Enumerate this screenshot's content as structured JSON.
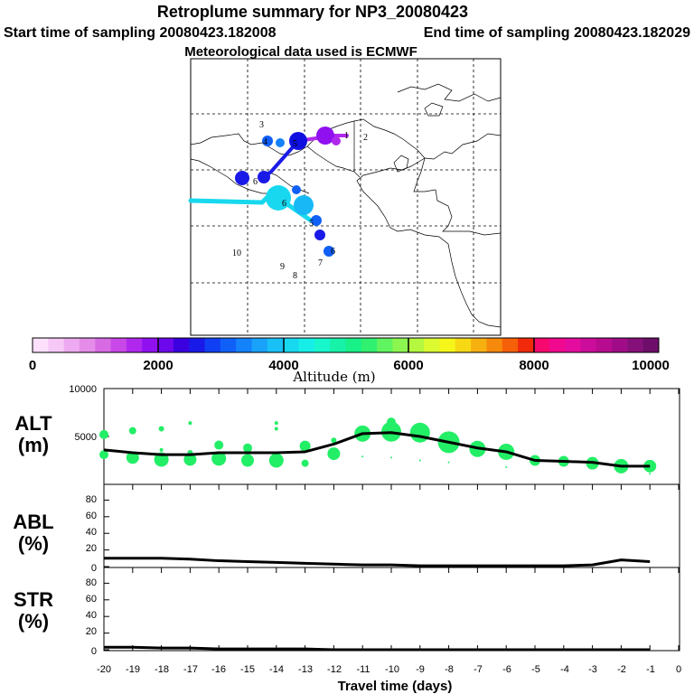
{
  "header": {
    "title": "Retroplume summary for NP3_20080423",
    "start_label": "Start time of sampling 20080423.182008",
    "end_label": "End time of sampling 20080423.182029",
    "met_label": "Meteorological data used is ECMWF"
  },
  "colors": {
    "alt_points": "#22ee66",
    "mean_line": "#000000",
    "colorbar": [
      "#fce0fc",
      "#f6c8f6",
      "#eeaaf0",
      "#e48ce8",
      "#d86ae4",
      "#c848e8",
      "#b028ee",
      "#9010f0",
      "#6e08ec",
      "#3a00e0",
      "#1a1ae8",
      "#1040f4",
      "#1060f8",
      "#1482fa",
      "#18a2fa",
      "#18c0f6",
      "#18d8f0",
      "#18eee8",
      "#18f6cc",
      "#18f2a8",
      "#18f088",
      "#30f070",
      "#60f460",
      "#8cf650",
      "#b4f840",
      "#dcfa30",
      "#f6f61a",
      "#f6d814",
      "#f6b010",
      "#f68a0c",
      "#f66008",
      "#f02a0a",
      "#f6086e",
      "#f0088e",
      "#e40c9e",
      "#cc0c9a",
      "#b80c90",
      "#a00c88",
      "#86107a",
      "#6e0e6a"
    ]
  },
  "chart_data": [
    {
      "type": "map",
      "title": "Retroplume summary for NP3_20080423",
      "plume_labels": [
        "1",
        "2",
        "3",
        "4",
        "5",
        "6",
        "7",
        "8",
        "9",
        "10"
      ],
      "colorbar": {
        "label": "Altitude (m)",
        "min": 0,
        "max": 10000,
        "tick_labels": [
          "0",
          "2000",
          "4000",
          "6000",
          "8000",
          "10000"
        ]
      }
    },
    {
      "type": "scatter",
      "panel": "ALT",
      "ylabel": "ALT",
      "yunit": "(m)",
      "ylim": [
        0,
        10000
      ],
      "ytick_labels": [
        "5000",
        "10000"
      ],
      "mean_line": {
        "x": [
          -20,
          -19,
          -18,
          -17,
          -16,
          -15,
          -14,
          -13,
          -12,
          -11,
          -10,
          -9,
          -8,
          -7,
          -6,
          -5,
          -4,
          -3,
          -2,
          -1
        ],
        "y": [
          3600,
          3300,
          3100,
          3100,
          3300,
          3300,
          3300,
          3400,
          4200,
          5300,
          5400,
          5000,
          4400,
          3800,
          3400,
          2500,
          2400,
          2300,
          1900,
          1900
        ]
      },
      "points": [
        {
          "x": -20,
          "y": 5200,
          "s": 5
        },
        {
          "x": -20,
          "y": 3100,
          "s": 5
        },
        {
          "x": -19,
          "y": 5600,
          "s": 4
        },
        {
          "x": -19,
          "y": 2800,
          "s": 7
        },
        {
          "x": -18,
          "y": 5800,
          "s": 3
        },
        {
          "x": -18,
          "y": 2600,
          "s": 8
        },
        {
          "x": -18,
          "y": 3600,
          "s": 2
        },
        {
          "x": -17,
          "y": 6400,
          "s": 2
        },
        {
          "x": -17,
          "y": 2600,
          "s": 7
        },
        {
          "x": -17,
          "y": 3300,
          "s": 3
        },
        {
          "x": -16,
          "y": 2700,
          "s": 8
        },
        {
          "x": -16,
          "y": 4100,
          "s": 5
        },
        {
          "x": -15,
          "y": 2500,
          "s": 7
        },
        {
          "x": -15,
          "y": 3800,
          "s": 5
        },
        {
          "x": -14,
          "y": 6400,
          "s": 2
        },
        {
          "x": -14,
          "y": 5800,
          "s": 2
        },
        {
          "x": -14,
          "y": 2500,
          "s": 8
        },
        {
          "x": -13,
          "y": 2200,
          "s": 4
        },
        {
          "x": -13,
          "y": 4000,
          "s": 6
        },
        {
          "x": -12,
          "y": 3200,
          "s": 7
        },
        {
          "x": -12,
          "y": 4600,
          "s": 3
        },
        {
          "x": -11,
          "y": 5300,
          "s": 9
        },
        {
          "x": -11,
          "y": 2900,
          "s": 1
        },
        {
          "x": -10,
          "y": 5500,
          "s": 11
        },
        {
          "x": -10,
          "y": 6500,
          "s": 5
        },
        {
          "x": -10,
          "y": 2800,
          "s": 1
        },
        {
          "x": -9,
          "y": 5400,
          "s": 11
        },
        {
          "x": -9,
          "y": 2500,
          "s": 1
        },
        {
          "x": -8,
          "y": 4400,
          "s": 12
        },
        {
          "x": -8,
          "y": 2300,
          "s": 1
        },
        {
          "x": -7,
          "y": 3700,
          "s": 9
        },
        {
          "x": -6,
          "y": 3400,
          "s": 9
        },
        {
          "x": -6,
          "y": 1800,
          "s": 1
        },
        {
          "x": -5,
          "y": 2500,
          "s": 6
        },
        {
          "x": -4,
          "y": 2400,
          "s": 6
        },
        {
          "x": -3,
          "y": 2200,
          "s": 7
        },
        {
          "x": -2,
          "y": 1900,
          "s": 8
        },
        {
          "x": -1,
          "y": 1900,
          "s": 7
        },
        {
          "x": -1,
          "y": 1100,
          "s": 1
        }
      ]
    },
    {
      "type": "line",
      "panel": "ABL",
      "ylabel": "ABL",
      "yunit": "(%)",
      "ylim": [
        0,
        100
      ],
      "ytick_labels": [
        "0",
        "20",
        "40",
        "60",
        "80"
      ],
      "x": [
        -20,
        -19,
        -18,
        -17,
        -16,
        -15,
        -14,
        -13,
        -12,
        -11,
        -10,
        -9,
        -8,
        -7,
        -6,
        -5,
        -4,
        -3,
        -2,
        -1
      ],
      "y": [
        10,
        10,
        10,
        9,
        7,
        6,
        5,
        4,
        3,
        2,
        2,
        1,
        1,
        1,
        1,
        1,
        1,
        2,
        8,
        6
      ]
    },
    {
      "type": "line",
      "panel": "STR",
      "ylabel": "STR",
      "yunit": "(%)",
      "ylim": [
        0,
        100
      ],
      "ytick_labels": [
        "0",
        "20",
        "40",
        "60",
        "80"
      ],
      "x": [
        -20,
        -19,
        -18,
        -17,
        -16,
        -15,
        -14,
        -13,
        -12,
        -11,
        -10,
        -9,
        -8,
        -7,
        -6,
        -5,
        -4,
        -3,
        -2,
        -1
      ],
      "y": [
        3,
        3,
        2,
        2,
        1,
        1,
        1,
        1,
        0,
        0,
        0,
        0,
        0,
        0,
        0,
        0,
        0,
        0,
        0,
        0
      ],
      "xlabel": "Travel time (days)",
      "xlim": [
        -20,
        0
      ],
      "xtick_labels": [
        "-20",
        "-19",
        "-18",
        "-17",
        "-16",
        "-15",
        "-14",
        "-13",
        "-12",
        "-11",
        "-10",
        "-9",
        "-8",
        "-7",
        "-6",
        "-5",
        "-4",
        "-3",
        "-2",
        "-1",
        "0"
      ]
    }
  ]
}
